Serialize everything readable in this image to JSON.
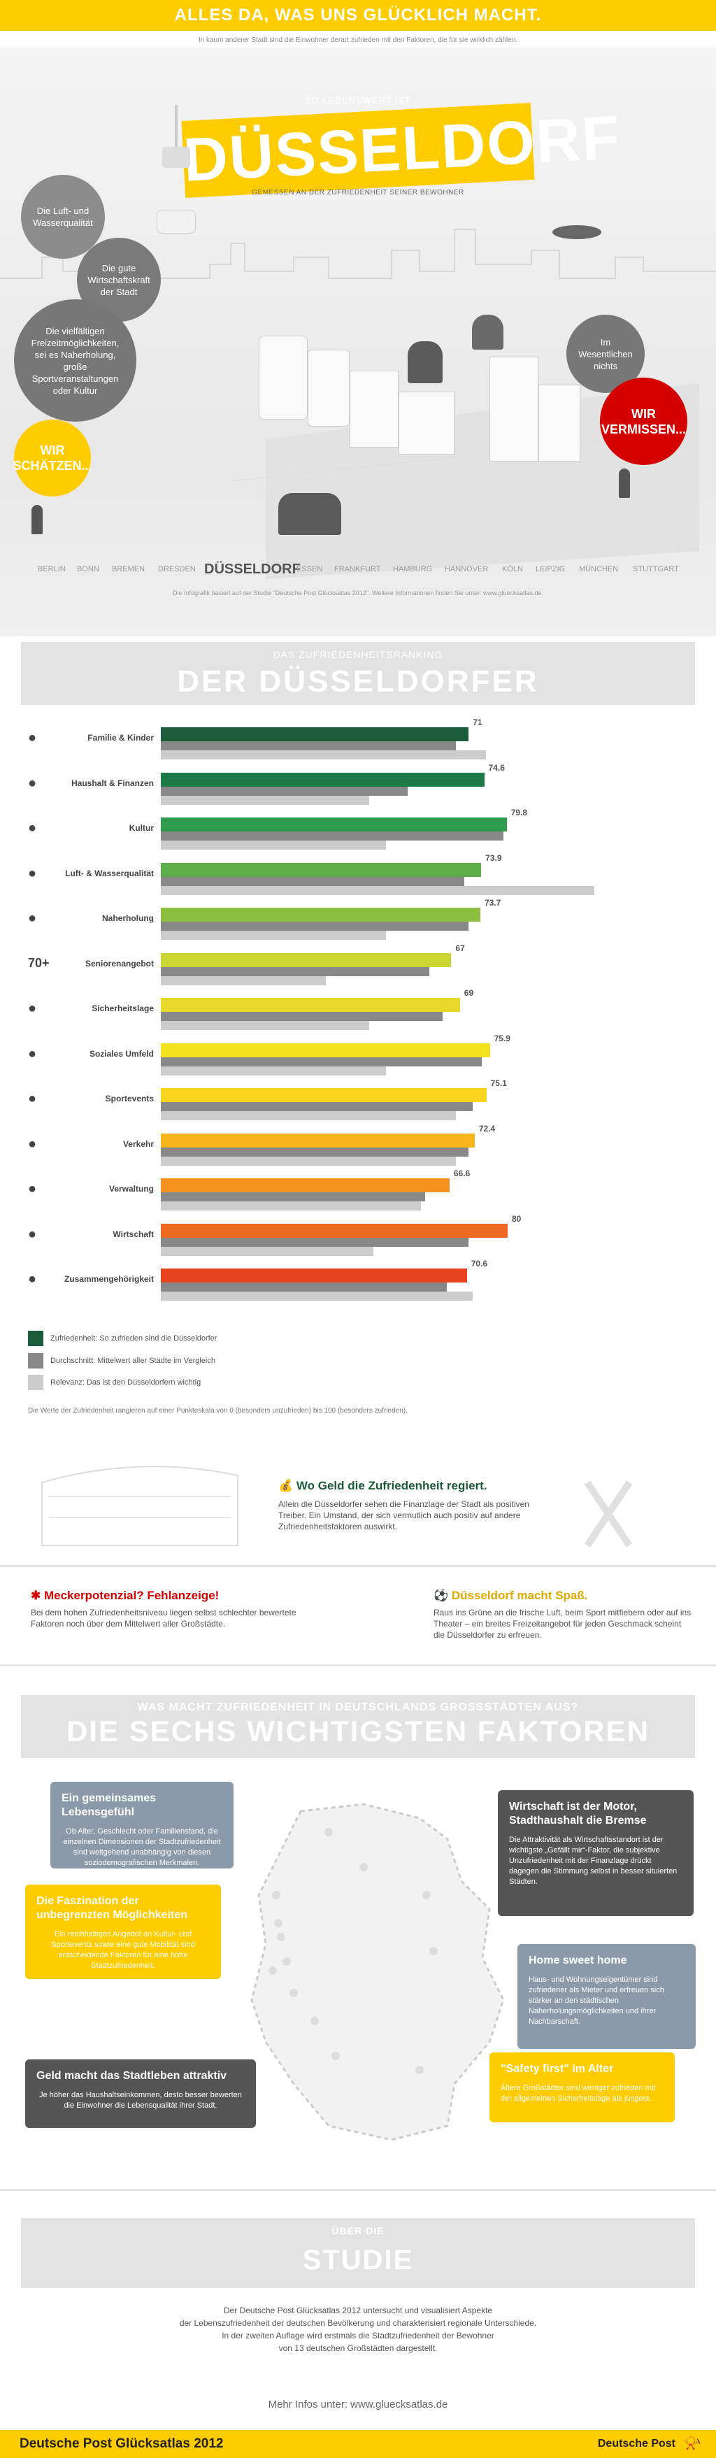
{
  "header": {
    "title": "ALLES DA, WAS UNS GLÜCKLICH MACHT.",
    "intro": "In kaum anderer Stadt sind die Einwohner derart zufrieden mit den Faktoren, die für sie wirklich zählen."
  },
  "hero": {
    "pretitle": "SO LEBENSWERT IST",
    "title": "DÜSSELDORF",
    "subtitle": "GEMESSEN AN DER ZUFRIEDENHEIT SEINER BEWOHNER",
    "bubbles": {
      "luft": "Die Luft- und Wasserqualität",
      "wirtschaft": "Die gute Wirtschaftskraft der Stadt",
      "freizeit": "Die vielfältigen Freizeitmöglichkeiten, sei es Naherholung, große Sportveranstaltungen oder Kultur",
      "schaetzen": "WIR SCHÄTZEN...",
      "nichts": "Im Wesentlichen nichts",
      "vermissen": "WIR VERMISSEN..."
    },
    "cities": [
      "BERLIN",
      "BONN",
      "BREMEN",
      "DRESDEN",
      "DÜSSELDORF",
      "ESSEN",
      "FRANKFURT",
      "HAMBURG",
      "HANNOVER",
      "KÖLN",
      "LEIPZIG",
      "MÜNCHEN",
      "STUTTGART"
    ],
    "note": "Die Infografik basiert auf der Studie \"Deutsche Post Glücksatlas 2012\". Weitere Informationen finden Sie unter: www.gluecksatlas.de."
  },
  "ranking": {
    "subtitle": "DAS ZUFRIEDENHEITSRANKING",
    "title": "DER DÜSSELDORFER",
    "legend": {
      "zufriedenheit": "Zufriedenheit: So zufrieden sind die Düsseldorfer",
      "durchschnitt": "Durchschnitt: Mittelwert aller Städte im Vergleich",
      "relevanz": "Relevanz: Das ist den Düsseldorfern wichtig"
    },
    "footnote": "Die Werte der Zufriedenheit rangieren auf einer Punkteskala von 0 (besonders unzufrieden) bis 100 (besonders zufrieden)."
  },
  "chart_data": {
    "type": "bar",
    "categories": [
      "Familie & Kinder",
      "Haushalt & Finanzen",
      "Kultur",
      "Luft- & Wasserqualität",
      "Naherholung",
      "Seniorenangebot",
      "Sicherheitslage",
      "Soziales Umfeld",
      "Sportevents",
      "Verkehr",
      "Verwaltung",
      "Wirtschaft",
      "Zusammengehörigkeit"
    ],
    "series": [
      {
        "name": "Zufriedenheit",
        "values": [
          71,
          74.6,
          79.8,
          73.9,
          73.7,
          67,
          69,
          75.9,
          75.1,
          72.4,
          66.6,
          80,
          70.6
        ]
      },
      {
        "name": "Durchschnitt",
        "values": [
          68,
          57,
          79,
          70,
          71,
          62,
          65,
          74,
          72,
          71,
          61,
          71,
          66
        ]
      },
      {
        "name": "Relevanz",
        "values": [
          75,
          48,
          52,
          100,
          52,
          38,
          48,
          52,
          68,
          68,
          60,
          49,
          72
        ]
      }
    ],
    "ylim": [
      0,
      100
    ],
    "colors": [
      "#1c5c3a",
      "#1b7a46",
      "#2e9b4f",
      "#5cae4a",
      "#8cbf3f",
      "#c9d634",
      "#e8d82a",
      "#f5e21f",
      "#fbd41e",
      "#fbb51c",
      "#f59220",
      "#ef6a21",
      "#e84321"
    ]
  },
  "icons": [
    "family-icon",
    "piggy-bank-icon",
    "theatre-masks-icon",
    "plant-icon",
    "leaf-icon",
    "70+",
    "shield-icon",
    "people-icon",
    "ball-icon",
    "bus-icon",
    "stamp-icon",
    "factory-icon",
    "group-icon"
  ],
  "insights": {
    "geld_title": "Wo Geld die Zufriedenheit regiert.",
    "geld_text": "Allein die Düsseldorfer sehen die Finanzlage der Stadt als positiven Treiber. Ein Umstand, der sich vermutlich auch positiv auf andere Zufriedenheitsfaktoren auswirkt.",
    "mecker_title": "Meckerpotenzial? Fehlanzeige!",
    "mecker_text": "Bei dem hohen Zufriedenheitsniveau liegen selbst schlechter bewertete Faktoren noch über dem Mittelwert aller Großstädte.",
    "spass_title": "Düsseldorf macht Spaß.",
    "spass_text": "Raus ins Grüne an die frische Luft, beim Sport mitfiebern oder auf ins Theater – ein breites Freizeitangebot für jeden Geschmack scheint die Düsseldorfer zu erfreuen."
  },
  "factors": {
    "subtitle": "WAS MACHT ZUFRIEDENHEIT IN DEUTSCHLANDS GROSSSTÄDTEN AUS?",
    "title": "DIE SECHS WICHTIGSTEN FAKTOREN",
    "items": [
      {
        "title": "Ein gemeinsames Lebensgefühl",
        "text": "Ob Alter, Geschlecht oder Familienstand, die einzelnen Dimensionen der Stadtzufriedenheit sind weitgehend unabhängig von diesen soziodemografischen Merkmalen."
      },
      {
        "title": "Die Faszination der unbegrenzten Möglichkeiten",
        "text": "Ein reichhaltiges Angebot an Kultur- und Sportevents sowie eine gute Mobilität sind entscheidende Faktoren für eine hohe Stadtzufriedenheit."
      },
      {
        "title": "Geld macht das Stadtleben attraktiv",
        "text": "Je höher das Haushaltseinkommen, desto besser bewerten die Einwohner die Lebensqualität ihrer Stadt."
      },
      {
        "title": "Wirtschaft ist der Motor, Stadthaushalt die Bremse",
        "text": "Die Attraktivität als Wirtschaftsstandort ist der wichtigste „Gefällt mir“-Faktor, die subjektive Unzufriedenheit mit der Finanzlage drückt dagegen die Stimmung selbst in besser situierten Städten."
      },
      {
        "title": "Home sweet home",
        "text": "Haus- und Wohnungseigentümer sind zufriedener als Mieter und erfreuen sich stärker an den städtischen Naherholungsmöglichkeiten und ihrer Nachbarschaft."
      },
      {
        "title": "\"Safety first\" im Alter",
        "text": "Ältere Großstädter sind weniger zufrieden mit der allgemeinen Sicherheitslage als jüngere."
      }
    ]
  },
  "studie": {
    "subtitle": "ÜBER DIE",
    "title": "STUDIE",
    "lines": [
      "Der Deutsche Post Glücksatlas 2012 untersucht und visualisiert Aspekte",
      "der Lebenszufriedenheit der deutschen Bevölkerung und charakterisiert regionale Unterschiede.",
      "In der zweiten Auflage wird erstmals die Stadtzufriedenheit der Bewohner",
      "von 13 deutschen Großstädten dargestellt."
    ],
    "more": "Mehr Infos unter: www.gluecksatlas.de"
  },
  "footer": {
    "left": "Deutsche Post Glücksatlas 2012",
    "right": "Deutsche Post"
  }
}
